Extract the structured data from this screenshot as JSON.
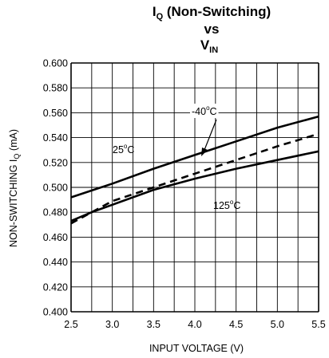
{
  "chart_data": {
    "type": "line",
    "title": {
      "line1_main": "I",
      "line1_sub": "Q",
      "line1_rest": " (Non-Switching)",
      "line2": "vs",
      "line3_main": "V",
      "line3_sub": "IN"
    },
    "xlabel": "INPUT VOLTAGE (V)",
    "ylabel": {
      "main": "NON-SWITCHING I",
      "sub": "Q",
      "rest": " (mA)"
    },
    "xlim": [
      2.5,
      5.5
    ],
    "ylim": [
      0.4,
      0.6
    ],
    "x_ticks": [
      "2.5",
      "3.0",
      "3.5",
      "4.0",
      "4.5",
      "5.0",
      "5.5"
    ],
    "y_ticks": [
      "0.600",
      "0.580",
      "0.560",
      "0.540",
      "0.520",
      "0.500",
      "0.480",
      "0.460",
      "0.440",
      "0.420",
      "0.400"
    ],
    "grid": true,
    "series": [
      {
        "name": "25°C",
        "style": "solid",
        "x": [
          2.5,
          3.0,
          3.5,
          4.0,
          4.5,
          5.0,
          5.5
        ],
        "values": [
          0.492,
          0.503,
          0.515,
          0.526,
          0.537,
          0.548,
          0.557
        ]
      },
      {
        "name": "-40°C",
        "style": "dashed",
        "x": [
          2.5,
          2.75,
          3.0,
          3.5,
          4.0,
          4.5,
          5.0,
          5.5
        ],
        "values": [
          0.471,
          0.48,
          0.489,
          0.5,
          0.511,
          0.522,
          0.533,
          0.543
        ]
      },
      {
        "name": "125°C",
        "style": "solid",
        "x": [
          2.5,
          2.75,
          3.0,
          3.5,
          4.0,
          4.5,
          5.0,
          5.5
        ],
        "values": [
          0.473,
          0.48,
          0.486,
          0.498,
          0.507,
          0.515,
          0.522,
          0.529
        ]
      }
    ],
    "annotations": [
      {
        "series": "25°C",
        "text": "25",
        "deg": "o",
        "unit": "C"
      },
      {
        "series": "-40°C",
        "text": "-40",
        "deg": "o",
        "unit": "C"
      },
      {
        "series": "125°C",
        "text": "125",
        "deg": "o",
        "unit": "C"
      }
    ],
    "colors": {
      "line": "#000000",
      "grid": "#000000",
      "background": "#ffffff"
    }
  }
}
